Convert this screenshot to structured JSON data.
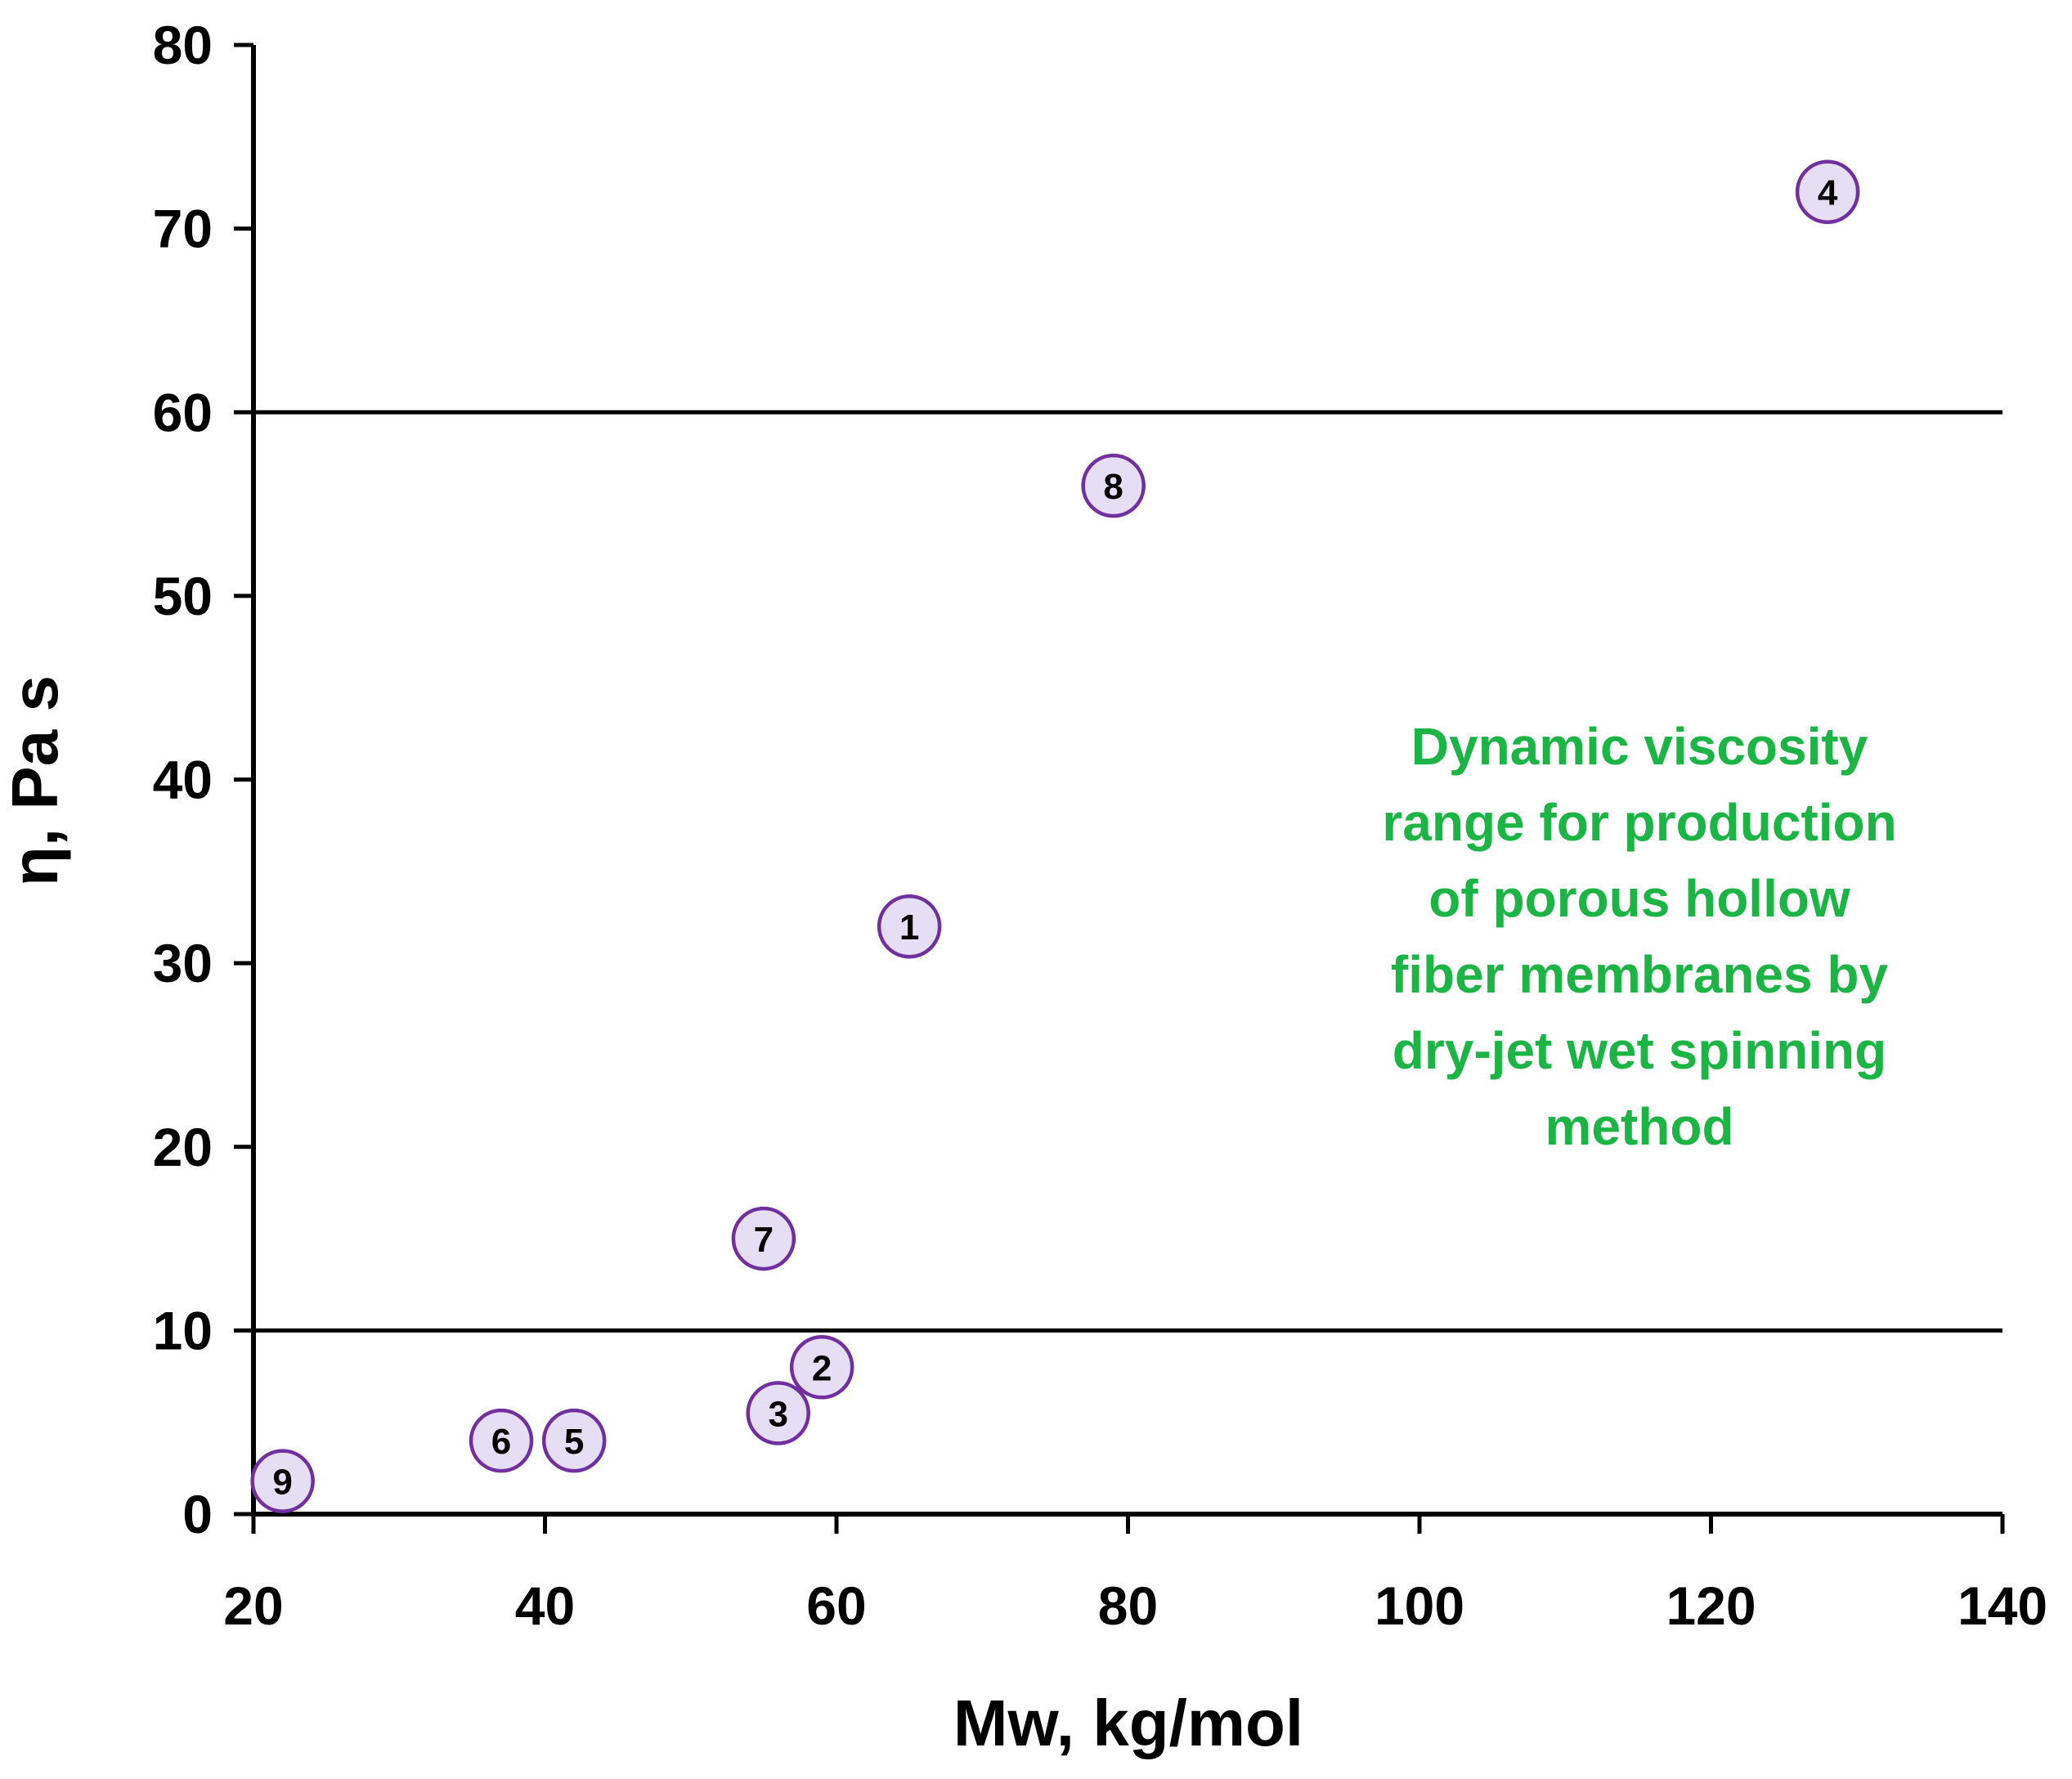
{
  "chart_data": {
    "type": "scatter",
    "title": "",
    "xlabel": "Mw, kg/mol",
    "ylabel": "η, Pa s",
    "xlim": [
      20,
      140
    ],
    "ylim": [
      0,
      80
    ],
    "xticks": [
      20,
      40,
      60,
      80,
      100,
      120,
      140
    ],
    "yticks": [
      0,
      10,
      20,
      30,
      40,
      50,
      60,
      70,
      80
    ],
    "grid": false,
    "reference_lines": [
      {
        "axis": "y",
        "value": 10
      },
      {
        "axis": "y",
        "value": 60
      }
    ],
    "points": [
      {
        "label": "1",
        "x": 65,
        "y": 32
      },
      {
        "label": "2",
        "x": 59,
        "y": 8
      },
      {
        "label": "3",
        "x": 56,
        "y": 5.5
      },
      {
        "label": "4",
        "x": 128,
        "y": 72
      },
      {
        "label": "5",
        "x": 42,
        "y": 4
      },
      {
        "label": "6",
        "x": 37,
        "y": 4
      },
      {
        "label": "7",
        "x": 55,
        "y": 15
      },
      {
        "label": "8",
        "x": 79,
        "y": 56
      },
      {
        "label": "9",
        "x": 22,
        "y": 1.8
      }
    ],
    "annotation": {
      "lines": [
        "Dynamic viscosity",
        "range for production",
        "of porous hollow",
        "fiber membranes by",
        "dry-jet wet spinning",
        "method"
      ],
      "placement": "right, between reference lines"
    },
    "colors": {
      "marker_fill": "#e6def4",
      "marker_edge": "#7030a0",
      "annotation_text": "#1db446",
      "axis": "#000000"
    }
  }
}
